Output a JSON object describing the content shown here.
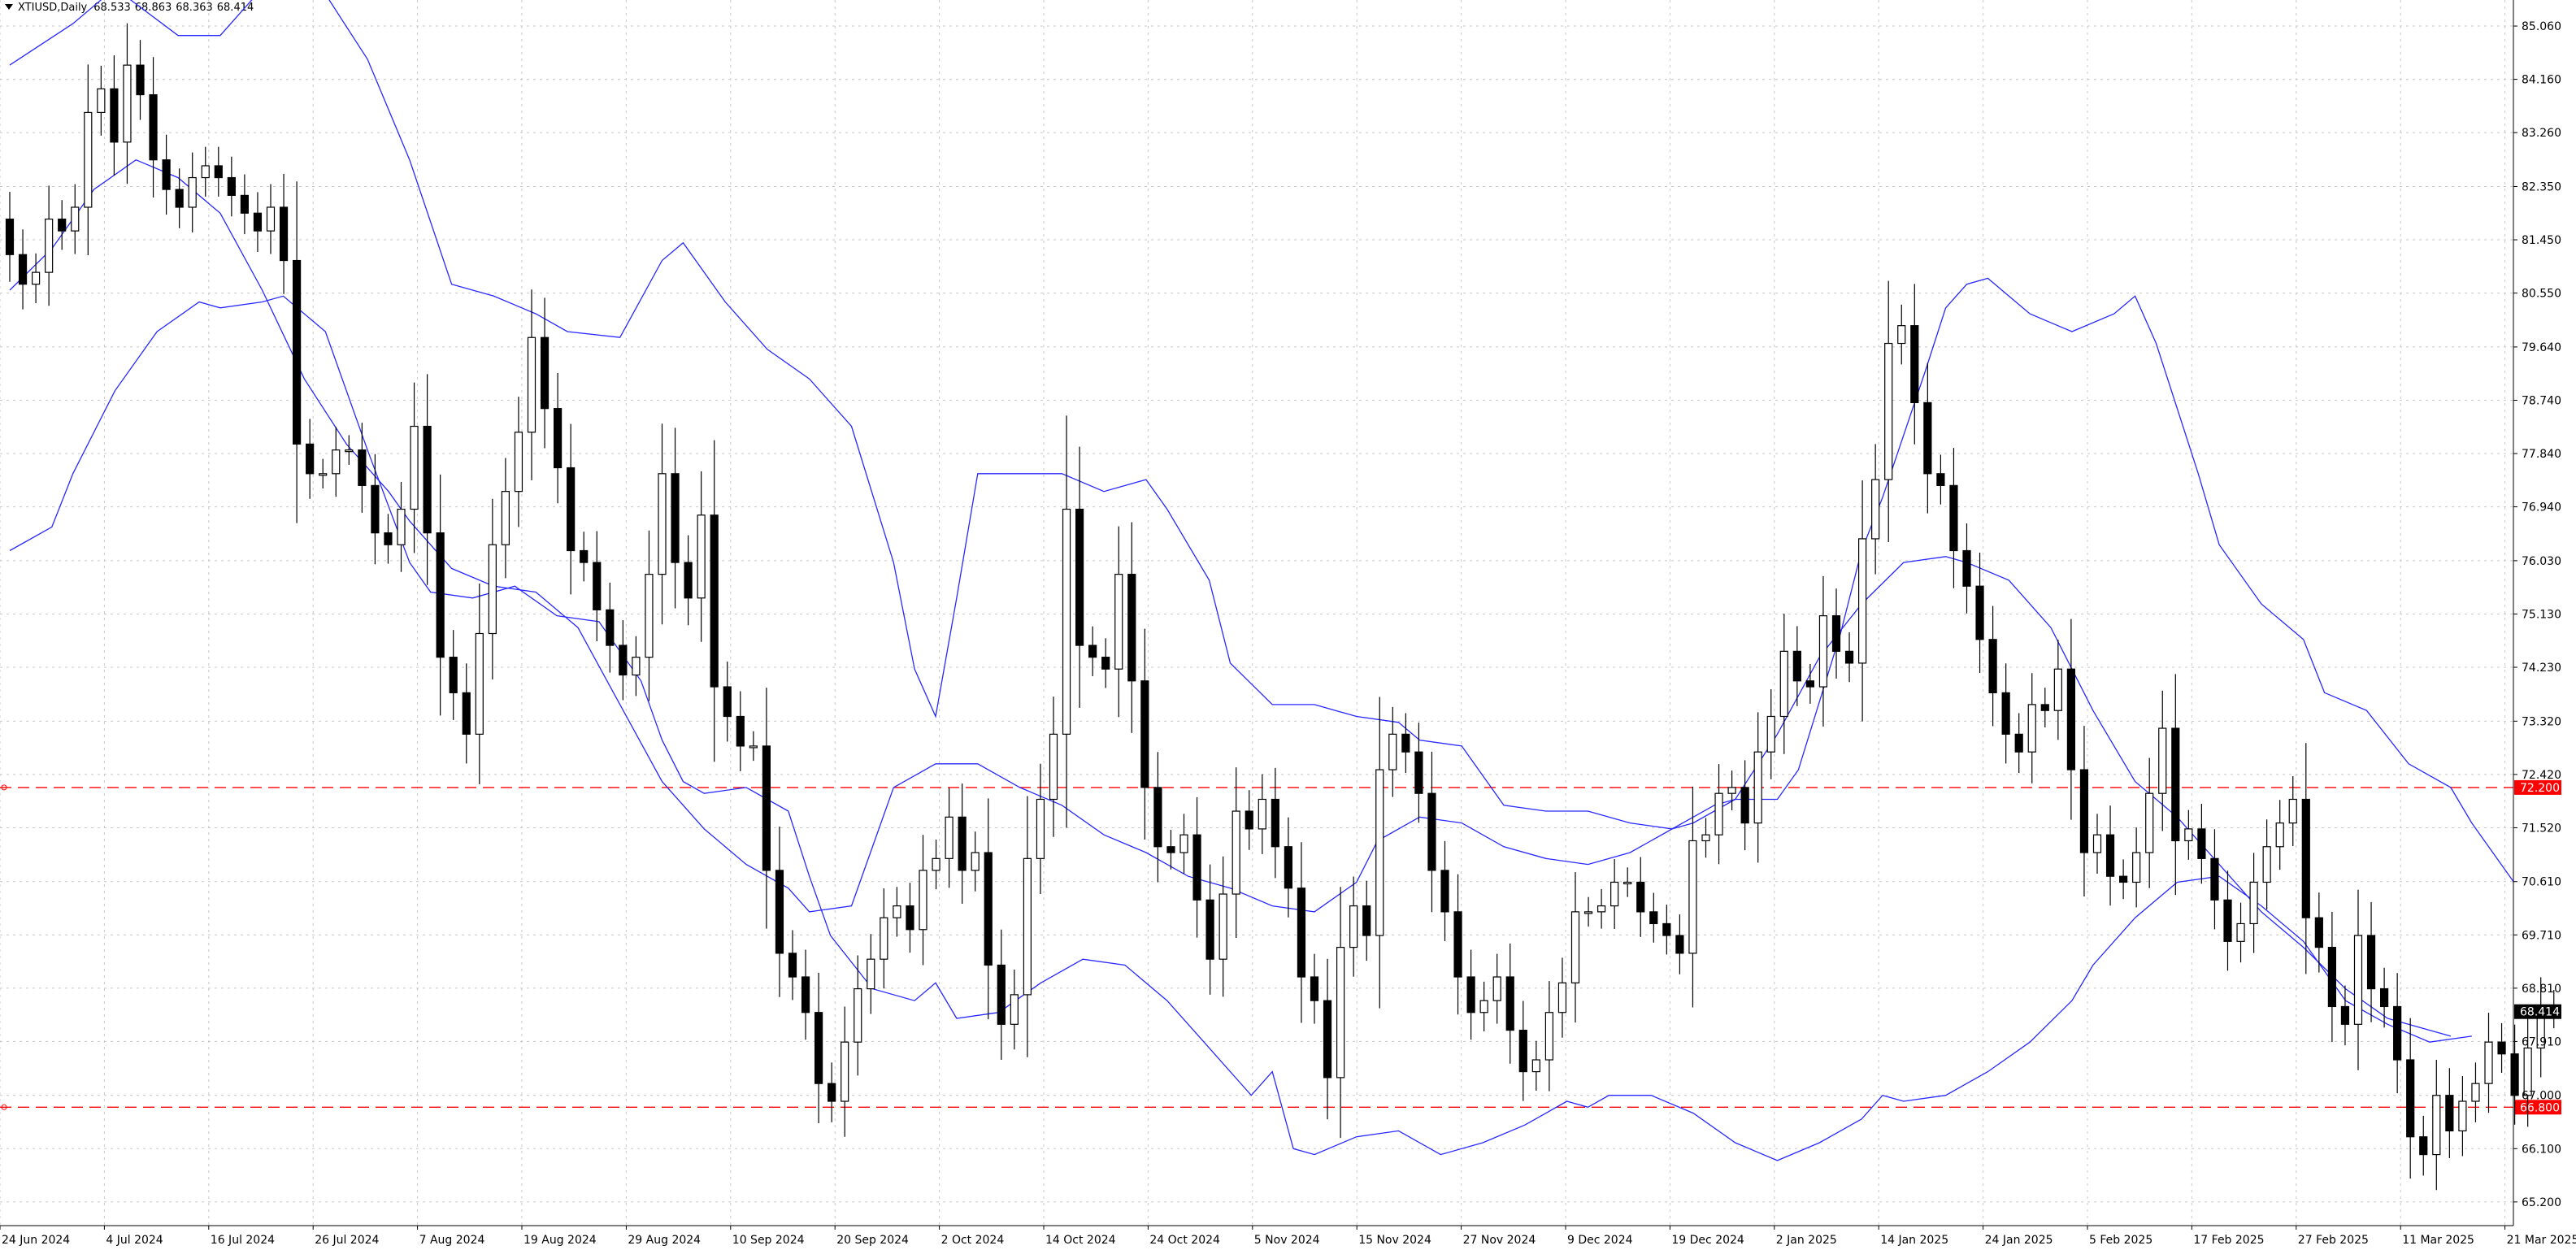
{
  "header": {
    "symbol": "XTIUSD,Daily",
    "open": "68.533",
    "high": "68.863",
    "low": "68.363",
    "close": "68.414"
  },
  "chart_data": {
    "type": "candlestick",
    "symbol": "XTIUSD",
    "timeframe": "Daily",
    "ylim": [
      64.8,
      85.5
    ],
    "y_ticks": [
      "85.060",
      "84.160",
      "83.260",
      "82.350",
      "81.450",
      "80.550",
      "79.640",
      "78.740",
      "77.840",
      "76.940",
      "76.030",
      "75.130",
      "74.230",
      "73.320",
      "72.420",
      "71.520",
      "70.610",
      "69.710",
      "68.810",
      "67.910",
      "67.000",
      "66.100",
      "65.200"
    ],
    "x_ticks": [
      {
        "label": "24 Jun 2024",
        "index": 0
      },
      {
        "label": "4 Jul 2024",
        "index": 8
      },
      {
        "label": "16 Jul 2024",
        "index": 16
      },
      {
        "label": "26 Jul 2024",
        "index": 24
      },
      {
        "label": "7 Aug 2024",
        "index": 32
      },
      {
        "label": "19 Aug 2024",
        "index": 40
      },
      {
        "label": "29 Aug 2024",
        "index": 48
      },
      {
        "label": "10 Sep 2024",
        "index": 56
      },
      {
        "label": "20 Sep 2024",
        "index": 64
      },
      {
        "label": "2 Oct 2024",
        "index": 72
      },
      {
        "label": "14 Oct 2024",
        "index": 80
      },
      {
        "label": "24 Oct 2024",
        "index": 88
      },
      {
        "label": "5 Nov 2024",
        "index": 96
      },
      {
        "label": "15 Nov 2024",
        "index": 104
      },
      {
        "label": "27 Nov 2024",
        "index": 112
      },
      {
        "label": "9 Dec 2024",
        "index": 120
      },
      {
        "label": "19 Dec 2024",
        "index": 128
      },
      {
        "label": "2 Jan 2025",
        "index": 136
      },
      {
        "label": "14 Jan 2025",
        "index": 144
      },
      {
        "label": "24 Jan 2025",
        "index": 152
      },
      {
        "label": "5 Feb 2025",
        "index": 160
      },
      {
        "label": "17 Feb 2025",
        "index": 168
      },
      {
        "label": "27 Feb 2025",
        "index": 176
      },
      {
        "label": "11 Mar 2025",
        "index": 184
      },
      {
        "label": "21 Mar 2025",
        "index": 192
      }
    ],
    "levels": [
      {
        "label": "72.200",
        "value": 72.2,
        "color": "#ff0000"
      },
      {
        "label": "66.800",
        "value": 66.8,
        "color": "#ff0000"
      }
    ],
    "current_price": {
      "label": "68.414",
      "value": 68.414
    },
    "closes": [
      81.2,
      80.7,
      80.9,
      81.8,
      81.6,
      82.0,
      83.6,
      84.0,
      83.1,
      84.4,
      83.9,
      82.8,
      82.3,
      82.0,
      82.5,
      82.7,
      82.5,
      82.2,
      81.9,
      81.6,
      82.0,
      81.1,
      78.0,
      77.5,
      77.5,
      77.9,
      77.9,
      77.3,
      76.5,
      76.3,
      76.9,
      78.3,
      76.5,
      74.4,
      73.8,
      73.1,
      74.8,
      76.3,
      77.2,
      78.2,
      79.8,
      78.6,
      77.6,
      76.2,
      76.0,
      75.2,
      74.6,
      74.1,
      74.4,
      75.8,
      77.5,
      76.0,
      75.4,
      76.8,
      73.9,
      73.4,
      72.9,
      72.9,
      70.8,
      69.4,
      69.0,
      68.4,
      67.2,
      66.9,
      67.9,
      68.8,
      69.3,
      70.0,
      70.2,
      69.8,
      70.8,
      71.0,
      71.7,
      70.8,
      71.1,
      69.2,
      68.2,
      68.7,
      71.0,
      72.0,
      73.1,
      76.9,
      74.6,
      74.4,
      74.2,
      75.8,
      74.0,
      72.2,
      71.2,
      71.1,
      71.4,
      70.3,
      69.3,
      70.4,
      71.8,
      71.5,
      72.0,
      71.2,
      70.5,
      69.0,
      68.6,
      67.3,
      69.5,
      70.2,
      69.7,
      72.5,
      73.1,
      72.8,
      72.1,
      70.8,
      70.1,
      69.0,
      68.4,
      68.6,
      69.0,
      68.1,
      67.4,
      67.6,
      68.4,
      68.9,
      70.1,
      70.1,
      70.2,
      70.6,
      70.6,
      70.1,
      69.9,
      69.7,
      69.4,
      71.3,
      71.4,
      72.1,
      72.2,
      71.6,
      72.8,
      73.4,
      74.5,
      74.0,
      73.9,
      75.1,
      74.5,
      74.3,
      76.4,
      77.4,
      79.7,
      80.0,
      78.7,
      77.5,
      77.3,
      76.2,
      75.6,
      74.7,
      73.8,
      73.1,
      72.8,
      73.6,
      73.5,
      74.2,
      72.5,
      71.1,
      71.4,
      70.7,
      70.6,
      71.1,
      72.1,
      73.2,
      71.3,
      71.5,
      71.0,
      70.3,
      69.6,
      69.9,
      70.6,
      71.2,
      71.6,
      72.0,
      70.0,
      69.5,
      68.5,
      68.2,
      69.7,
      68.8,
      68.5,
      67.6,
      66.3,
      66.0,
      67.0,
      66.4,
      66.9,
      67.2,
      67.9,
      67.7,
      67.0,
      67.8,
      68.5,
      68.414
    ],
    "bollinger": {
      "upper": [
        [
          0,
          84.4
        ],
        [
          6,
          85.1
        ],
        [
          10,
          85.7
        ],
        [
          16,
          84.9
        ],
        [
          20,
          84.9
        ],
        [
          24,
          85.7
        ],
        [
          28,
          86.0
        ],
        [
          30,
          85.6
        ],
        [
          34,
          84.5
        ],
        [
          38,
          82.8
        ],
        [
          42,
          80.7
        ],
        [
          46,
          80.5
        ],
        [
          50,
          80.2
        ],
        [
          53,
          79.9
        ],
        [
          58,
          79.8
        ],
        [
          62,
          81.1
        ],
        [
          64,
          81.4
        ],
        [
          68,
          80.4
        ],
        [
          72,
          79.6
        ],
        [
          76,
          79.1
        ],
        [
          80,
          78.3
        ],
        [
          84,
          76.0
        ],
        [
          86,
          74.2
        ],
        [
          88,
          73.4
        ],
        [
          90,
          75.4
        ],
        [
          92,
          77.5
        ],
        [
          96,
          77.5
        ],
        [
          100,
          77.5
        ],
        [
          104,
          77.2
        ],
        [
          108,
          77.4
        ],
        [
          110,
          76.9
        ],
        [
          114,
          75.7
        ],
        [
          116,
          74.3
        ],
        [
          120,
          73.6
        ],
        [
          124,
          73.6
        ],
        [
          128,
          73.4
        ],
        [
          132,
          73.3
        ],
        [
          134,
          73.0
        ],
        [
          138,
          72.9
        ],
        [
          142,
          71.9
        ],
        [
          146,
          71.8
        ],
        [
          150,
          71.8
        ],
        [
          154,
          71.6
        ],
        [
          158,
          71.5
        ],
        [
          162,
          71.9
        ],
        [
          164,
          72.0
        ],
        [
          166,
          72.0
        ],
        [
          168,
          72.0
        ],
        [
          170,
          72.5
        ],
        [
          174,
          74.8
        ],
        [
          176,
          76.2
        ],
        [
          178,
          77.1
        ],
        [
          182,
          79.2
        ],
        [
          184,
          80.3
        ],
        [
          186,
          80.7
        ],
        [
          188,
          80.8
        ],
        [
          192,
          80.2
        ],
        [
          196,
          79.9
        ],
        [
          200,
          80.2
        ],
        [
          202,
          80.5
        ],
        [
          204,
          79.7
        ],
        [
          208,
          77.5
        ],
        [
          210,
          76.3
        ],
        [
          214,
          75.3
        ],
        [
          218,
          74.7
        ],
        [
          220,
          73.8
        ],
        [
          224,
          73.5
        ],
        [
          228,
          72.6
        ],
        [
          232,
          72.2
        ],
        [
          234,
          71.6
        ],
        [
          238,
          70.6
        ]
      ],
      "middle": [
        [
          0,
          80.6
        ],
        [
          4,
          81.3
        ],
        [
          8,
          82.3
        ],
        [
          12,
          82.8
        ],
        [
          16,
          82.5
        ],
        [
          20,
          81.9
        ],
        [
          24,
          80.6
        ],
        [
          28,
          79.1
        ],
        [
          32,
          78.0
        ],
        [
          36,
          77.2
        ],
        [
          38,
          76.7
        ],
        [
          42,
          75.9
        ],
        [
          46,
          75.6
        ],
        [
          50,
          75.5
        ],
        [
          54,
          74.9
        ],
        [
          58,
          73.6
        ],
        [
          62,
          72.3
        ],
        [
          66,
          71.5
        ],
        [
          70,
          70.9
        ],
        [
          74,
          70.5
        ],
        [
          76,
          70.1
        ],
        [
          80,
          70.2
        ],
        [
          84,
          72.2
        ],
        [
          88,
          72.6
        ],
        [
          92,
          72.6
        ],
        [
          96,
          72.2
        ],
        [
          100,
          71.9
        ],
        [
          104,
          71.4
        ],
        [
          108,
          71.1
        ],
        [
          112,
          70.7
        ],
        [
          116,
          70.5
        ],
        [
          120,
          70.2
        ],
        [
          124,
          70.1
        ],
        [
          128,
          70.6
        ],
        [
          130,
          71.3
        ],
        [
          134,
          71.7
        ],
        [
          138,
          71.6
        ],
        [
          142,
          71.2
        ],
        [
          146,
          71.0
        ],
        [
          150,
          70.9
        ],
        [
          154,
          71.1
        ],
        [
          158,
          71.5
        ],
        [
          160,
          71.6
        ],
        [
          164,
          72.0
        ],
        [
          168,
          73.1
        ],
        [
          172,
          74.4
        ],
        [
          176,
          75.3
        ],
        [
          180,
          76.0
        ],
        [
          184,
          76.1
        ],
        [
          186,
          76.0
        ],
        [
          190,
          75.7
        ],
        [
          194,
          74.9
        ],
        [
          198,
          73.5
        ],
        [
          202,
          72.3
        ],
        [
          206,
          71.7
        ],
        [
          210,
          70.9
        ],
        [
          214,
          70.1
        ],
        [
          218,
          69.5
        ],
        [
          222,
          68.8
        ],
        [
          226,
          68.3
        ],
        [
          230,
          68.1
        ],
        [
          232,
          68.0
        ]
      ],
      "lower": [
        [
          0,
          76.2
        ],
        [
          4,
          76.6
        ],
        [
          6,
          77.5
        ],
        [
          10,
          78.9
        ],
        [
          14,
          79.9
        ],
        [
          18,
          80.4
        ],
        [
          20,
          80.3
        ],
        [
          24,
          80.4
        ],
        [
          26,
          80.5
        ],
        [
          30,
          79.9
        ],
        [
          34,
          77.9
        ],
        [
          38,
          76.0
        ],
        [
          40,
          75.5
        ],
        [
          44,
          75.4
        ],
        [
          48,
          75.6
        ],
        [
          52,
          75.1
        ],
        [
          56,
          75.0
        ],
        [
          60,
          74.0
        ],
        [
          62,
          73.0
        ],
        [
          64,
          72.3
        ],
        [
          66,
          72.1
        ],
        [
          70,
          72.2
        ],
        [
          74,
          71.8
        ],
        [
          76,
          70.7
        ],
        [
          78,
          69.7
        ],
        [
          82,
          68.8
        ],
        [
          86,
          68.6
        ],
        [
          88,
          68.9
        ],
        [
          90,
          68.3
        ],
        [
          94,
          68.4
        ],
        [
          98,
          68.9
        ],
        [
          102,
          69.3
        ],
        [
          106,
          69.2
        ],
        [
          110,
          68.6
        ],
        [
          114,
          67.8
        ],
        [
          118,
          67.0
        ],
        [
          120,
          67.4
        ],
        [
          122,
          66.1
        ],
        [
          124,
          66.0
        ],
        [
          128,
          66.3
        ],
        [
          132,
          66.4
        ],
        [
          136,
          66.0
        ],
        [
          140,
          66.2
        ],
        [
          144,
          66.5
        ],
        [
          148,
          66.9
        ],
        [
          150,
          66.8
        ],
        [
          152,
          67.0
        ],
        [
          156,
          67.0
        ],
        [
          160,
          66.7
        ],
        [
          164,
          66.2
        ],
        [
          168,
          65.9
        ],
        [
          172,
          66.2
        ],
        [
          176,
          66.6
        ],
        [
          178,
          67.0
        ],
        [
          180,
          66.9
        ],
        [
          184,
          67.0
        ],
        [
          188,
          67.4
        ],
        [
          192,
          67.9
        ],
        [
          196,
          68.6
        ],
        [
          198,
          69.2
        ],
        [
          202,
          70.0
        ],
        [
          206,
          70.6
        ],
        [
          210,
          70.7
        ],
        [
          214,
          70.2
        ],
        [
          218,
          69.6
        ],
        [
          222,
          68.6
        ],
        [
          226,
          68.2
        ],
        [
          230,
          67.9
        ],
        [
          234,
          68.0
        ]
      ]
    }
  }
}
